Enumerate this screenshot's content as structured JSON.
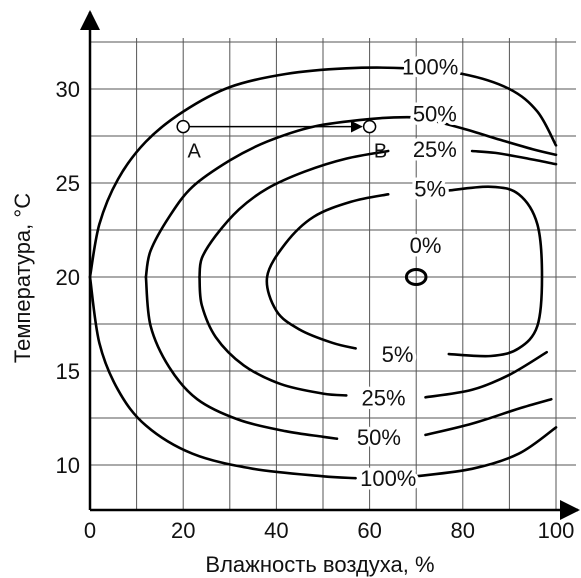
{
  "chart_data": {
    "type": "contour",
    "xlabel": "Влажность воздуха, %",
    "ylabel": "Температура, °C",
    "xlim": [
      0,
      100
    ],
    "ylim": [
      7.5,
      33
    ],
    "x_ticks": [
      0,
      20,
      40,
      60,
      80,
      100
    ],
    "y_ticks": [
      10,
      15,
      20,
      25,
      30
    ],
    "grid": true,
    "contours": [
      {
        "label": "100%",
        "upper_branch": [
          [
            100,
            27.0
          ],
          [
            96,
            28.8
          ],
          [
            90,
            30.0
          ],
          [
            80,
            30.8
          ],
          [
            68,
            31.1
          ],
          [
            55,
            31.1
          ],
          [
            42,
            30.8
          ],
          [
            30,
            30.1
          ],
          [
            20,
            28.8
          ],
          [
            12,
            27.2
          ],
          [
            6,
            25.2
          ],
          [
            2,
            22.8
          ],
          [
            0,
            20.0
          ]
        ],
        "lower_branch": [
          [
            0,
            20.0
          ],
          [
            2,
            16.5
          ],
          [
            6,
            14.0
          ],
          [
            12,
            12.1
          ],
          [
            22,
            10.6
          ],
          [
            35,
            9.8
          ],
          [
            50,
            9.4
          ],
          [
            57,
            9.3
          ]
        ],
        "lower_right": [
          [
            70,
            9.4
          ],
          [
            82,
            9.8
          ],
          [
            92,
            10.6
          ],
          [
            100,
            12.0
          ]
        ]
      },
      {
        "label": "50%",
        "upper_branch": [
          [
            100,
            26.5
          ],
          [
            95,
            26.8
          ],
          [
            88,
            27.3
          ],
          [
            80,
            27.9
          ],
          [
            72,
            28.4
          ],
          [
            68,
            28.5
          ],
          [
            60,
            28.4
          ],
          [
            48,
            28.0
          ],
          [
            38,
            27.2
          ],
          [
            30,
            26.2
          ],
          [
            22,
            24.8
          ],
          [
            17,
            23.2
          ],
          [
            13,
            21.4
          ],
          [
            12,
            20.0
          ]
        ],
        "lower_branch": [
          [
            12,
            20.0
          ],
          [
            13,
            17.4
          ],
          [
            17,
            15.2
          ],
          [
            23,
            13.5
          ],
          [
            32,
            12.4
          ],
          [
            42,
            11.8
          ],
          [
            50,
            11.5
          ],
          [
            53,
            11.4
          ]
        ],
        "lower_right": [
          [
            72,
            11.6
          ],
          [
            82,
            12.2
          ],
          [
            92,
            13.0
          ],
          [
            99,
            13.5
          ]
        ]
      },
      {
        "label": "25%",
        "upper_branch": [
          [
            100,
            26.0
          ],
          [
            94,
            26.3
          ],
          [
            87,
            26.6
          ],
          [
            82,
            26.7
          ]
        ],
        "upper_left": [
          [
            64,
            26.7
          ],
          [
            55,
            26.3
          ],
          [
            46,
            25.6
          ],
          [
            38,
            24.7
          ],
          [
            32,
            23.6
          ],
          [
            27,
            22.2
          ],
          [
            24,
            21.0
          ],
          [
            23.5,
            20.0
          ]
        ],
        "lower_branch": [
          [
            23.5,
            20.0
          ],
          [
            24,
            18.5
          ],
          [
            27,
            16.8
          ],
          [
            33,
            15.3
          ],
          [
            41,
            14.3
          ],
          [
            50,
            13.8
          ],
          [
            55,
            13.7
          ]
        ],
        "lower_right": [
          [
            72,
            13.6
          ],
          [
            82,
            14.0
          ],
          [
            90,
            14.8
          ],
          [
            98,
            16.0
          ]
        ]
      },
      {
        "label": "5%",
        "closed": true,
        "upper_arc": [
          [
            64,
            24.4
          ],
          [
            56,
            24.0
          ],
          [
            48,
            23.2
          ],
          [
            42,
            21.8
          ],
          [
            38,
            20.0
          ],
          [
            40,
            18.2
          ],
          [
            45,
            17.2
          ],
          [
            52,
            16.5
          ],
          [
            57,
            16.2
          ]
        ],
        "right_arc": [
          [
            77,
            24.6
          ],
          [
            86,
            24.8
          ],
          [
            92,
            24.4
          ],
          [
            96,
            22.8
          ],
          [
            97,
            20.0
          ],
          [
            96,
            17.4
          ],
          [
            92,
            16.2
          ],
          [
            86,
            15.8
          ],
          [
            77,
            15.9
          ]
        ]
      }
    ],
    "contour_label_positions": [
      {
        "text": "100%",
        "x": 73,
        "y": 31.2
      },
      {
        "text": "50%",
        "x": 74,
        "y": 28.7
      },
      {
        "text": "25%",
        "x": 74,
        "y": 26.8
      },
      {
        "text": "5%",
        "x": 73,
        "y": 24.7
      },
      {
        "text": "0%",
        "x": 72,
        "y": 21.7
      },
      {
        "text": "5%",
        "x": 66,
        "y": 15.9
      },
      {
        "text": "25%",
        "x": 63,
        "y": 13.6
      },
      {
        "text": "50%",
        "x": 62,
        "y": 11.5
      },
      {
        "text": "100%",
        "x": 64,
        "y": 9.3
      }
    ],
    "center_ellipse": {
      "x": 70,
      "y": 20,
      "rx": 2.1,
      "ry": 0.4
    },
    "points": [
      {
        "label": "A",
        "x": 20,
        "y": 28
      },
      {
        "label": "B",
        "x": 60,
        "y": 28
      }
    ],
    "arrow": {
      "from": [
        20,
        28
      ],
      "to": [
        60,
        28
      ]
    }
  }
}
